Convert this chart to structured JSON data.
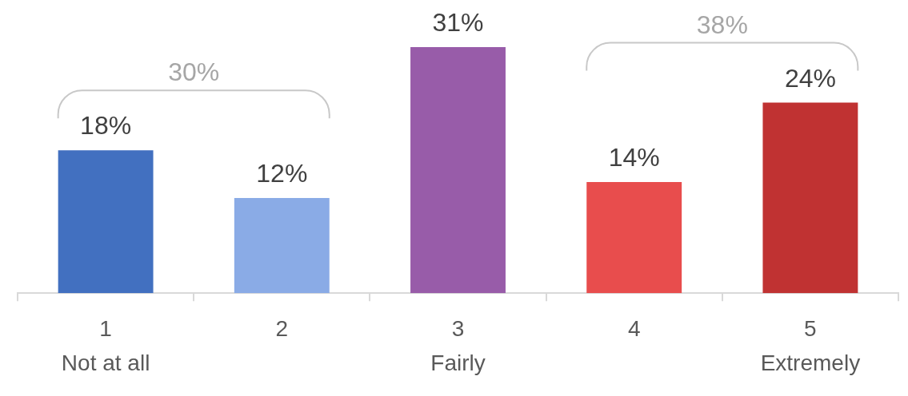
{
  "chart_data": {
    "type": "bar",
    "categories": [
      "1\nNot at all",
      "2",
      "3\nFairly",
      "4",
      "5\nExtremely"
    ],
    "values": [
      18,
      12,
      31,
      14,
      24
    ],
    "colors": [
      "#4270c0",
      "#8aabe6",
      "#985ca9",
      "#e84d4d",
      "#c03232"
    ],
    "value_labels": [
      "18%",
      "12%",
      "31%",
      "14%",
      "24%"
    ],
    "annotations": [
      "30%",
      "38%"
    ],
    "grid": false,
    "legend": false
  }
}
